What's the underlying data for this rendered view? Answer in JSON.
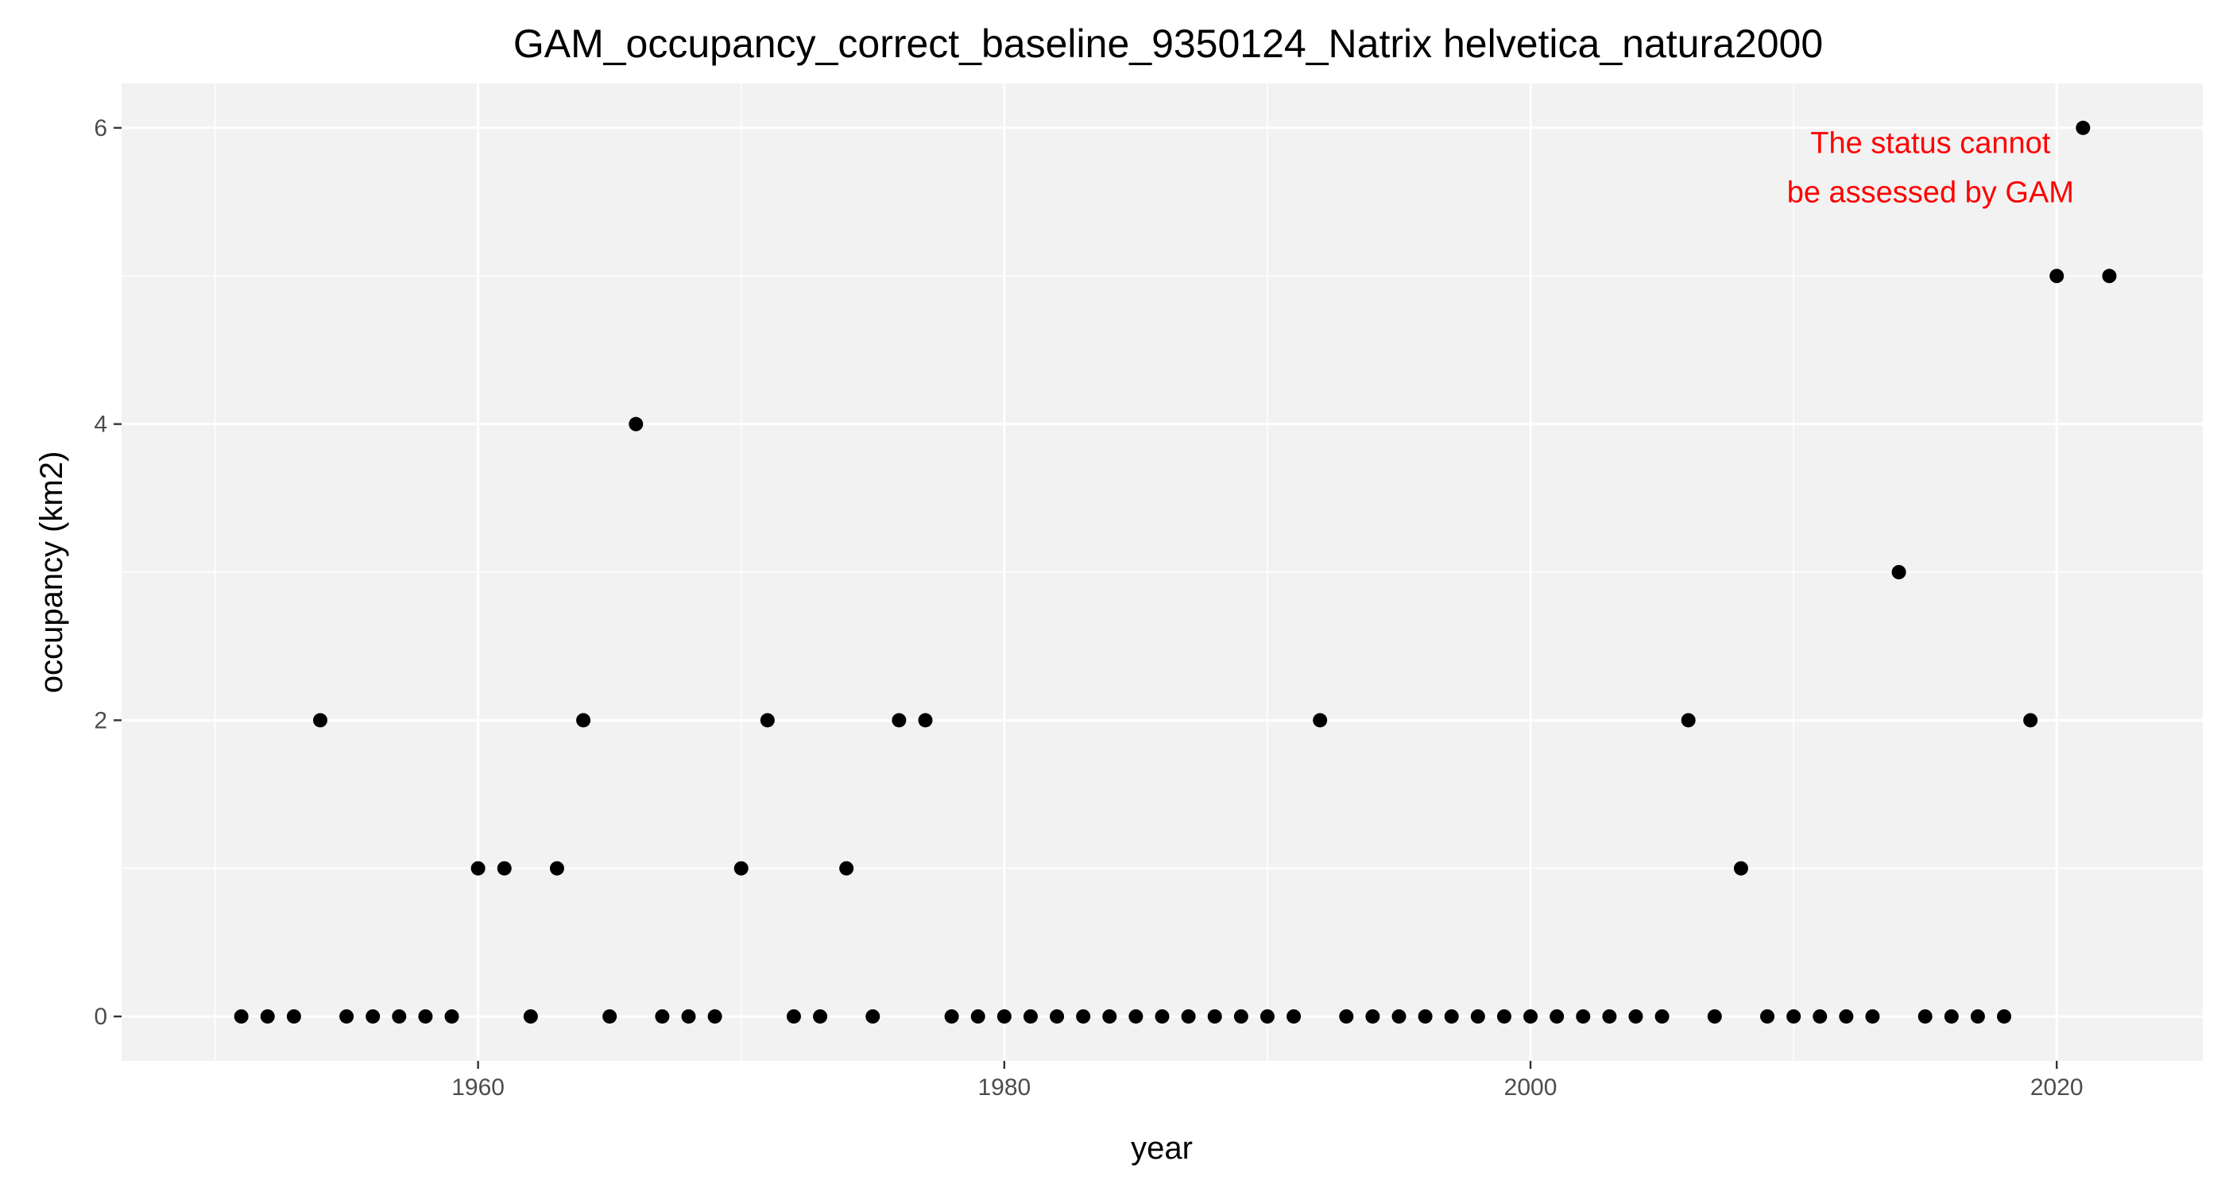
{
  "chart_data": {
    "type": "scatter",
    "title": "GAM_occupancy_correct_baseline_9350124_Natrix helvetica_natura2000",
    "xlabel": "year",
    "ylabel": "occupancy (km2)",
    "xlim": [
      1946.45,
      2025.55
    ],
    "ylim": [
      -0.3,
      6.3
    ],
    "x_ticks": [
      1960,
      1980,
      2000,
      2020
    ],
    "y_ticks": [
      0,
      2,
      4,
      6
    ],
    "grid": true,
    "legend": "none",
    "colors": {
      "panel": "#f2f2f2",
      "grid_major": "#ffffff",
      "point": "#000000",
      "annotation": "#ff0000",
      "tick": "#4d4d4d"
    },
    "annotation": {
      "lines": [
        "The status cannot",
        "be assessed by GAM"
      ]
    },
    "x": [
      1951,
      1952,
      1953,
      1954,
      1955,
      1956,
      1957,
      1958,
      1959,
      1960,
      1961,
      1962,
      1963,
      1964,
      1965,
      1966,
      1967,
      1968,
      1969,
      1970,
      1971,
      1972,
      1973,
      1974,
      1975,
      1976,
      1977,
      1978,
      1979,
      1980,
      1981,
      1982,
      1983,
      1984,
      1985,
      1986,
      1987,
      1988,
      1989,
      1990,
      1991,
      1992,
      1993,
      1994,
      1995,
      1996,
      1997,
      1998,
      1999,
      2000,
      2001,
      2002,
      2003,
      2004,
      2005,
      2006,
      2007,
      2008,
      2009,
      2010,
      2011,
      2012,
      2013,
      2014,
      2015,
      2016,
      2017,
      2018,
      2019,
      2020,
      2021,
      2022
    ],
    "y": [
      0,
      0,
      0,
      2,
      0,
      0,
      0,
      0,
      0,
      1,
      1,
      0,
      1,
      2,
      0,
      4,
      0,
      0,
      0,
      1,
      2,
      0,
      0,
      1,
      0,
      2,
      2,
      0,
      0,
      0,
      0,
      0,
      0,
      0,
      0,
      0,
      0,
      0,
      0,
      0,
      0,
      2,
      0,
      0,
      0,
      0,
      0,
      0,
      0,
      0,
      0,
      0,
      0,
      0,
      0,
      2,
      0,
      1,
      0,
      0,
      0,
      0,
      0,
      3,
      0,
      0,
      0,
      0,
      2,
      5,
      6,
      5
    ]
  }
}
